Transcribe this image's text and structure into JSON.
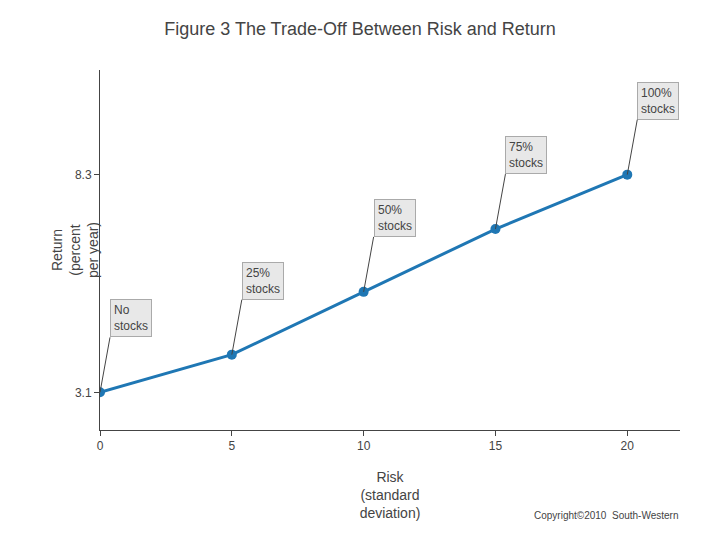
{
  "chart_data": {
    "type": "line",
    "title": "Figure 3 The Trade-Off Between Risk and Return",
    "x": [
      0,
      5,
      10,
      15,
      20
    ],
    "values": [
      3.1,
      4.0,
      5.5,
      7.0,
      8.3
    ],
    "xlabel": "Risk\n(standard\ndeviation)",
    "ylabel": "Return\n(percent\nper year)",
    "xlim": [
      0,
      22
    ],
    "ylim": [
      2.2,
      10.8
    ],
    "xticks": [
      0,
      5,
      10,
      15,
      20
    ],
    "yticks": [
      3.1,
      8.3
    ],
    "grid": false,
    "marker": "circle",
    "annotations": [
      {
        "text": "No\nstocks",
        "x": 0,
        "y": 3.1
      },
      {
        "text": "25%\nstocks",
        "x": 5,
        "y": 4.0
      },
      {
        "text": "50%\nstocks",
        "x": 10,
        "y": 5.5
      },
      {
        "text": "75%\nstocks",
        "x": 15,
        "y": 7.0
      },
      {
        "text": "100%\nstocks",
        "x": 20,
        "y": 8.3
      }
    ],
    "source": "Copyright©2010  South-Western"
  }
}
